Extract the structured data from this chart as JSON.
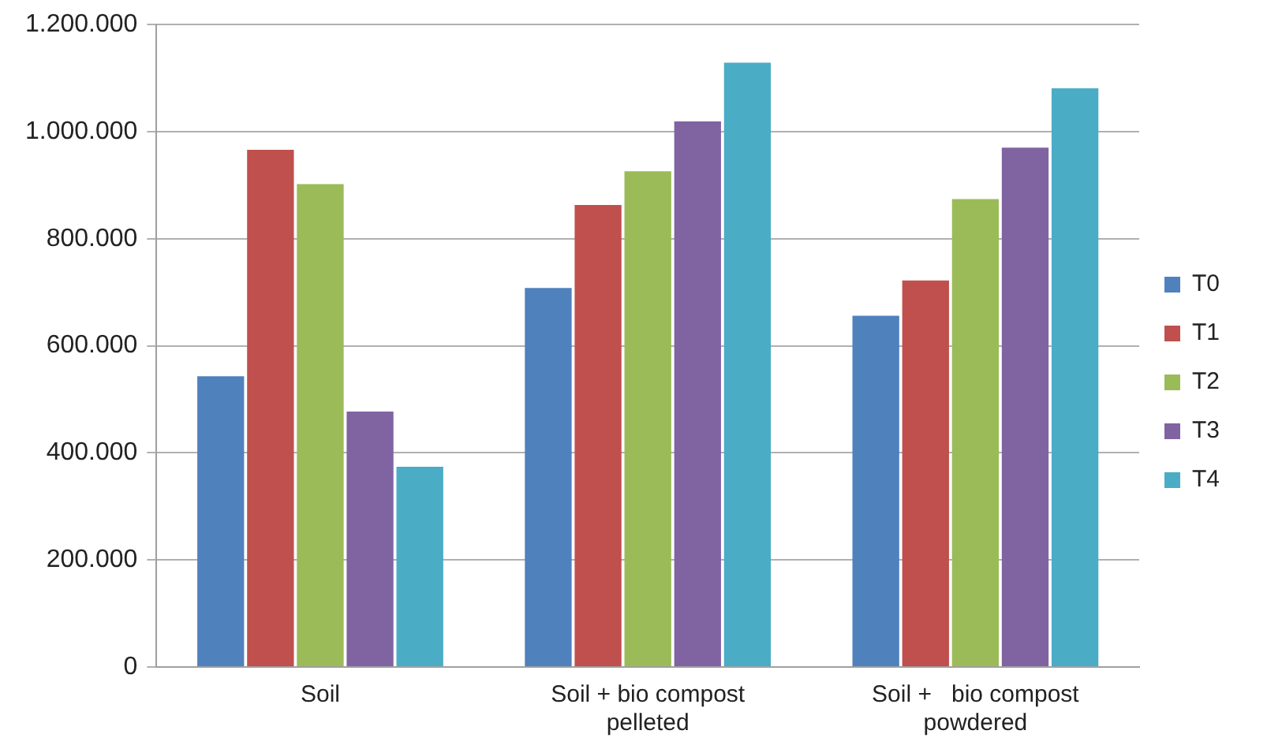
{
  "chart_data": {
    "type": "bar",
    "categories": [
      "Soil",
      "Soil + bio compost pelleted",
      "Soil +   bio compost powdered"
    ],
    "series": [
      {
        "name": "T0",
        "color": "#4f81bd",
        "values": [
          543000,
          708000,
          656000
        ]
      },
      {
        "name": "T1",
        "color": "#c0504d",
        "values": [
          966000,
          863000,
          722000
        ]
      },
      {
        "name": "T2",
        "color": "#9bbb59",
        "values": [
          902000,
          926000,
          874000
        ]
      },
      {
        "name": "T3",
        "color": "#8064a2",
        "values": [
          477000,
          1019000,
          970000
        ]
      },
      {
        "name": "T4",
        "color": "#4bacc6",
        "values": [
          374000,
          1129000,
          1081000
        ]
      }
    ],
    "ylim": [
      0,
      1200000
    ],
    "yticks": [
      {
        "value": 0,
        "label": "0"
      },
      {
        "value": 200000,
        "label": "200.000"
      },
      {
        "value": 400000,
        "label": "400.000"
      },
      {
        "value": 600000,
        "label": "600.000"
      },
      {
        "value": 800000,
        "label": "800.000"
      },
      {
        "value": 1000000,
        "label": "1.000.000"
      },
      {
        "value": 1200000,
        "label": "1.200.000"
      }
    ],
    "grid": "y",
    "legend": "right"
  }
}
